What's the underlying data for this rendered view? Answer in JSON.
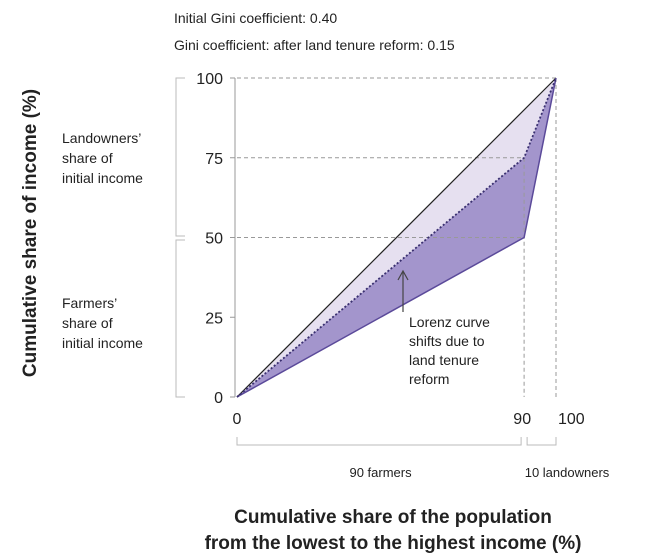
{
  "chart_data": {
    "type": "area",
    "annotations": {
      "initial_gini": "Initial Gini coefficient: 0.40",
      "after_gini": "Gini coefficient: after land tenure reform: 0.15",
      "landowners_share": [
        "Landowners’",
        "share of",
        "initial income"
      ],
      "farmers_share": [
        "Farmers’",
        "share of",
        "initial income"
      ],
      "shift_label": [
        "Lorenz curve",
        "shifts due to",
        "land tenure",
        "reform"
      ]
    },
    "xlabel": [
      "Cumulative share of the population",
      "from the lowest to the highest income (%)"
    ],
    "ylabel": "Cumulative share of income (%)",
    "xlim": [
      0,
      100
    ],
    "ylim": [
      0,
      100
    ],
    "y_ticks": [
      "0",
      "25",
      "50",
      "75",
      "100"
    ],
    "y_tick_values": [
      0,
      25,
      50,
      75,
      100
    ],
    "x_ticks": [
      "0",
      "90",
      "100"
    ],
    "x_tick_values": [
      0,
      90,
      100
    ],
    "groups": [
      {
        "label": "90 farmers",
        "from": 0,
        "to": 90
      },
      {
        "label": "10 landowners",
        "from": 90,
        "to": 100
      }
    ],
    "series": [
      {
        "x": [
          0,
          100
        ],
        "y": [
          0,
          100
        ],
        "style": "solid"
      },
      {
        "x": [
          0,
          90,
          100
        ],
        "y": [
          0,
          50,
          100
        ],
        "style": "solid"
      },
      {
        "x": [
          0,
          90,
          100
        ],
        "y": [
          0,
          75,
          100
        ],
        "style": "dotted"
      }
    ],
    "colors": {
      "equality": "#222222",
      "initial_curve": "#5b4a9a",
      "after_curve": "#3a3070",
      "area_initial": "#a395cc",
      "area_after": "#e6e0f0",
      "guides": "#999999"
    }
  }
}
